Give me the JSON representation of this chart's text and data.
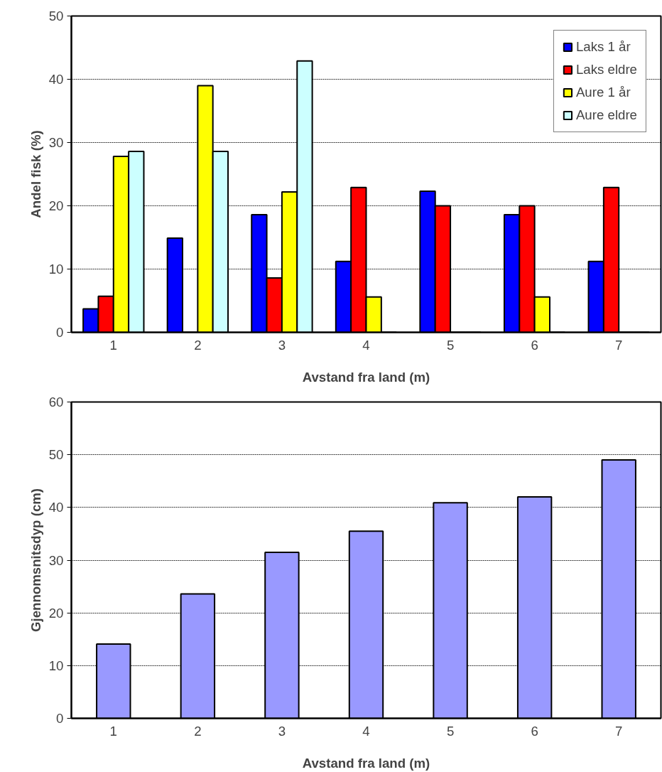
{
  "chart_data": [
    {
      "type": "bar",
      "categories": [
        "1",
        "2",
        "3",
        "4",
        "5",
        "6",
        "7"
      ],
      "xlabel": "Avstand fra land (m)",
      "ylabel": "Andel fisk (%)",
      "ylim": [
        0,
        50
      ],
      "yticks": [
        0,
        10,
        20,
        30,
        40,
        50
      ],
      "grid": "y",
      "legend": "top right",
      "series": [
        {
          "name": "Laks 1 år",
          "color": "#0000ff",
          "values": [
            3.7,
            14.9,
            18.6,
            11.2,
            22.3,
            18.6,
            11.2
          ]
        },
        {
          "name": "Laks eldre",
          "color": "#ff0000",
          "values": [
            5.7,
            0,
            8.6,
            22.9,
            20.0,
            20.0,
            22.9
          ]
        },
        {
          "name": "Aure 1 år",
          "color": "#ffff00",
          "values": [
            27.8,
            39.0,
            22.2,
            5.6,
            0,
            5.6,
            0
          ]
        },
        {
          "name": "Aure eldre",
          "color": "#ccffff",
          "values": [
            28.6,
            28.6,
            42.9,
            0,
            0,
            0,
            0
          ]
        }
      ]
    },
    {
      "type": "bar",
      "categories": [
        "1",
        "2",
        "3",
        "4",
        "5",
        "6",
        "7"
      ],
      "xlabel": "Avstand fra land (m)",
      "ylabel": "Gjennomsnitsdyp (cm)",
      "ylim": [
        0,
        60
      ],
      "yticks": [
        0,
        10,
        20,
        30,
        40,
        50,
        60
      ],
      "grid": "y",
      "series": [
        {
          "color": "#9999ff",
          "values": [
            14.1,
            23.6,
            31.5,
            35.5,
            40.9,
            42.0,
            49.0
          ]
        }
      ]
    }
  ]
}
